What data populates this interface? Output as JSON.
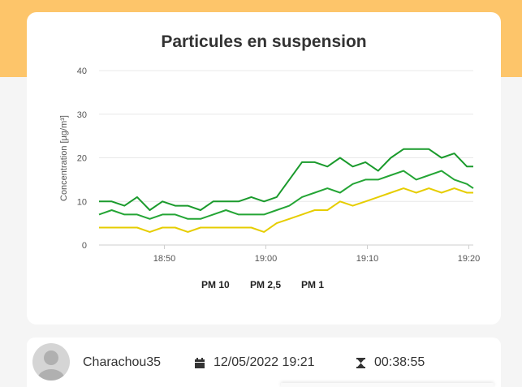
{
  "colors": {
    "header_band": "#fdc56a",
    "pm10": "#1a9a2c",
    "pm25": "#24a535",
    "pm1": "#e6cd00"
  },
  "chart_data": {
    "type": "line",
    "title": "Particules en suspension",
    "xlabel": "",
    "ylabel": "Concentration [µg/m³]",
    "ylim": [
      0,
      40
    ],
    "y_ticks": [
      "0",
      "10",
      "20",
      "30",
      "40"
    ],
    "x_ticks": [
      {
        "t": 230,
        "label": "18:50"
      },
      {
        "t": 1830,
        "label": "19:00"
      },
      {
        "t": 3430,
        "label": "19:10"
      },
      {
        "t": 5030,
        "label": "19:20"
      }
    ],
    "x_range_seconds": [
      -800,
      5100
    ],
    "grid": "horizontal",
    "legend_position": "bottom-center",
    "series": [
      {
        "name": "PM 10",
        "color": "#1a9a2c",
        "x": [
          -800,
          -600,
          -400,
          -200,
          0,
          200,
          400,
          600,
          800,
          1000,
          1200,
          1400,
          1600,
          1800,
          2000,
          2200,
          2400,
          2600,
          2800,
          3000,
          3200,
          3400,
          3600,
          3800,
          4000,
          4200,
          4400,
          4600,
          4800,
          5000,
          5100
        ],
        "values": [
          10,
          10,
          9,
          11,
          8,
          10,
          9,
          9,
          8,
          10,
          10,
          10,
          11,
          10,
          11,
          15,
          19,
          19,
          18,
          20,
          18,
          19,
          17,
          20,
          22,
          22,
          22,
          20,
          21,
          18,
          18
        ]
      },
      {
        "name": "PM 2,5",
        "color": "#24a535",
        "x": [
          -800,
          -600,
          -400,
          -200,
          0,
          200,
          400,
          600,
          800,
          1000,
          1200,
          1400,
          1600,
          1800,
          2000,
          2200,
          2400,
          2600,
          2800,
          3000,
          3200,
          3400,
          3600,
          3800,
          4000,
          4200,
          4400,
          4600,
          4800,
          5000,
          5100
        ],
        "values": [
          7,
          8,
          7,
          7,
          6,
          7,
          7,
          6,
          6,
          7,
          8,
          7,
          7,
          7,
          8,
          9,
          11,
          12,
          13,
          12,
          14,
          15,
          15,
          16,
          17,
          15,
          16,
          17,
          15,
          14,
          13
        ]
      },
      {
        "name": "PM 1",
        "color": "#e6cd00",
        "x": [
          -800,
          -600,
          -400,
          -200,
          0,
          200,
          400,
          600,
          800,
          1000,
          1200,
          1400,
          1600,
          1800,
          2000,
          2200,
          2400,
          2600,
          2800,
          3000,
          3200,
          3400,
          3600,
          3800,
          4000,
          4200,
          4400,
          4600,
          4800,
          5000,
          5100
        ],
        "values": [
          4,
          4,
          4,
          4,
          3,
          4,
          4,
          3,
          4,
          4,
          4,
          4,
          4,
          3,
          5,
          6,
          7,
          8,
          8,
          10,
          9,
          10,
          11,
          12,
          13,
          12,
          13,
          12,
          13,
          12,
          12
        ]
      }
    ]
  },
  "legend": [
    "PM 10",
    "PM 2,5",
    "PM 1"
  ],
  "footer": {
    "username": "Charachou35",
    "date": "12/05/2022 19:21",
    "duration": "00:38:55",
    "calendar_icon": "calendar-icon",
    "hourglass_icon": "hourglass-icon",
    "avatar_icon": "user-avatar-icon"
  }
}
